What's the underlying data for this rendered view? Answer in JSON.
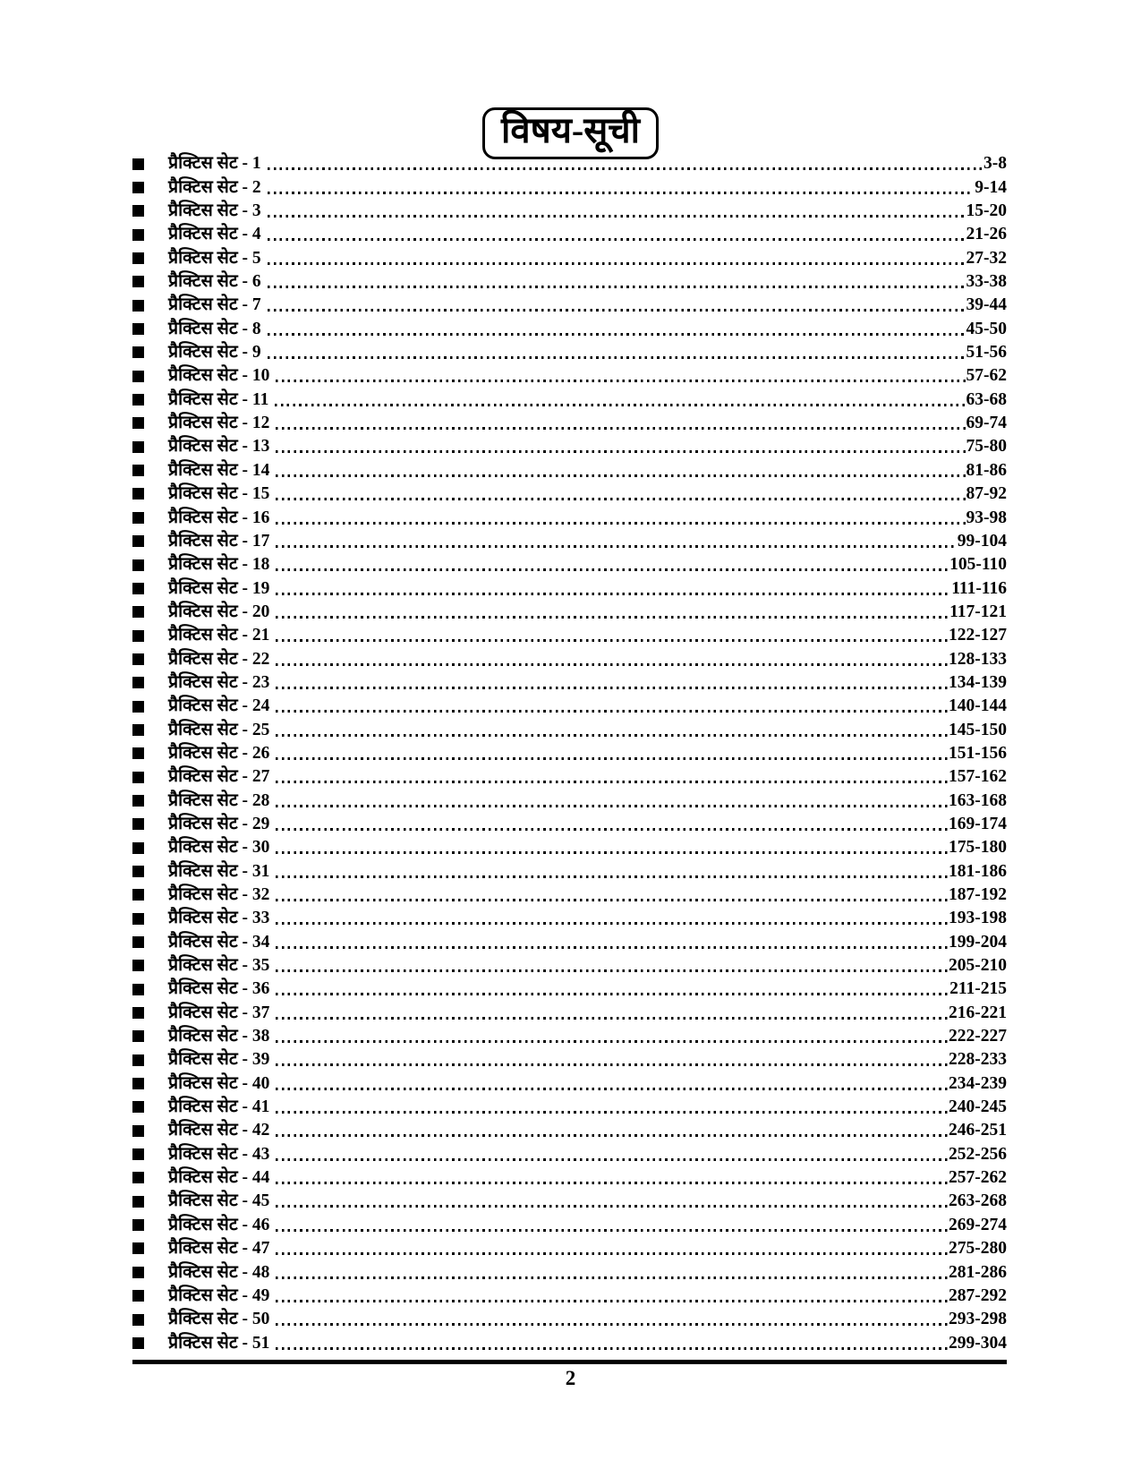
{
  "page": {
    "title": "विषय-सूची",
    "page_number": "2"
  },
  "colors": {
    "text": "#000000",
    "background": "#ffffff"
  },
  "icons": {
    "bullet": "black-square"
  },
  "toc": {
    "entries": [
      {
        "label": "प्रैक्टिस सेट - 1",
        "pages": "3-8"
      },
      {
        "label": "प्रैक्टिस सेट - 2",
        "pages": "9-14"
      },
      {
        "label": "प्रैक्टिस सेट - 3",
        "pages": "15-20"
      },
      {
        "label": "प्रैक्टिस सेट - 4",
        "pages": "21-26"
      },
      {
        "label": "प्रैक्टिस सेट - 5",
        "pages": "27-32"
      },
      {
        "label": "प्रैक्टिस सेट - 6",
        "pages": "33-38"
      },
      {
        "label": "प्रैक्टिस सेट - 7",
        "pages": "39-44"
      },
      {
        "label": "प्रैक्टिस सेट - 8",
        "pages": "45-50"
      },
      {
        "label": "प्रैक्टिस सेट - 9",
        "pages": "51-56"
      },
      {
        "label": "प्रैक्टिस सेट - 10",
        "pages": "57-62"
      },
      {
        "label": "प्रैक्टिस सेट - 11",
        "pages": "63-68"
      },
      {
        "label": "प्रैक्टिस सेट - 12",
        "pages": "69-74"
      },
      {
        "label": "प्रैक्टिस सेट - 13",
        "pages": "75-80"
      },
      {
        "label": "प्रैक्टिस सेट - 14",
        "pages": "81-86"
      },
      {
        "label": "प्रैक्टिस सेट - 15",
        "pages": "87-92"
      },
      {
        "label": "प्रैक्टिस सेट - 16",
        "pages": "93-98"
      },
      {
        "label": "प्रैक्टिस सेट - 17",
        "pages": "99-104"
      },
      {
        "label": "प्रैक्टिस सेट - 18",
        "pages": "105-110"
      },
      {
        "label": "प्रैक्टिस सेट - 19",
        "pages": "111-116"
      },
      {
        "label": "प्रैक्टिस सेट - 20",
        "pages": "117-121"
      },
      {
        "label": "प्रैक्टिस सेट - 21",
        "pages": "122-127"
      },
      {
        "label": "प्रैक्टिस सेट - 22",
        "pages": "128-133"
      },
      {
        "label": "प्रैक्टिस सेट - 23",
        "pages": "134-139"
      },
      {
        "label": "प्रैक्टिस सेट - 24",
        "pages": "140-144"
      },
      {
        "label": "प्रैक्टिस सेट - 25",
        "pages": "145-150"
      },
      {
        "label": "प्रैक्टिस सेट - 26",
        "pages": "151-156"
      },
      {
        "label": "प्रैक्टिस सेट - 27",
        "pages": "157-162"
      },
      {
        "label": "प्रैक्टिस सेट - 28",
        "pages": "163-168"
      },
      {
        "label": "प्रैक्टिस सेट - 29",
        "pages": "169-174"
      },
      {
        "label": "प्रैक्टिस सेट - 30",
        "pages": "175-180"
      },
      {
        "label": "प्रैक्टिस सेट - 31",
        "pages": "181-186"
      },
      {
        "label": "प्रैक्टिस सेट - 32",
        "pages": "187-192"
      },
      {
        "label": "प्रैक्टिस सेट - 33",
        "pages": "193-198"
      },
      {
        "label": "प्रैक्टिस सेट - 34",
        "pages": "199-204"
      },
      {
        "label": "प्रैक्टिस सेट - 35",
        "pages": "205-210"
      },
      {
        "label": "प्रैक्टिस सेट - 36",
        "pages": "211-215"
      },
      {
        "label": "प्रैक्टिस सेट - 37",
        "pages": "216-221"
      },
      {
        "label": "प्रैक्टिस सेट - 38",
        "pages": "222-227"
      },
      {
        "label": "प्रैक्टिस सेट - 39",
        "pages": "228-233"
      },
      {
        "label": "प्रैक्टिस सेट - 40",
        "pages": "234-239"
      },
      {
        "label": "प्रैक्टिस सेट - 41",
        "pages": "240-245"
      },
      {
        "label": "प्रैक्टिस सेट - 42",
        "pages": "246-251"
      },
      {
        "label": "प्रैक्टिस सेट - 43",
        "pages": "252-256"
      },
      {
        "label": "प्रैक्टिस सेट - 44",
        "pages": "257-262"
      },
      {
        "label": "प्रैक्टिस सेट - 45",
        "pages": "263-268"
      },
      {
        "label": "प्रैक्टिस सेट - 46",
        "pages": "269-274"
      },
      {
        "label": "प्रैक्टिस सेट - 47",
        "pages": "275-280"
      },
      {
        "label": "प्रैक्टिस सेट - 48",
        "pages": "281-286"
      },
      {
        "label": "प्रैक्टिस सेट - 49",
        "pages": "287-292"
      },
      {
        "label": "प्रैक्टिस सेट - 50",
        "pages": "293-298"
      },
      {
        "label": "प्रैक्टिस सेट - 51",
        "pages": "299-304"
      }
    ]
  }
}
